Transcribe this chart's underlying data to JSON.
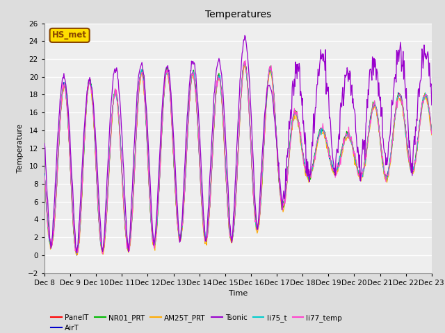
{
  "title": "Temperatures",
  "xlabel": "Time",
  "ylabel": "Temperature",
  "ylim": [
    -2,
    26
  ],
  "yticks": [
    -2,
    0,
    2,
    4,
    6,
    8,
    10,
    12,
    14,
    16,
    18,
    20,
    22,
    24,
    26
  ],
  "xtick_labels": [
    "Dec 8",
    "Dec 9",
    "Dec 10",
    "Dec 11",
    "Dec 12",
    "Dec 13",
    "Dec 14",
    "Dec 15",
    "Dec 16",
    "Dec 17",
    "Dec 18",
    "Dec 19",
    "Dec 20",
    "Dec 21",
    "Dec 22",
    "Dec 23"
  ],
  "series": {
    "PanelT": {
      "color": "#ff0000",
      "lw": 0.8,
      "zorder": 3
    },
    "AirT": {
      "color": "#0000cc",
      "lw": 0.8,
      "zorder": 3
    },
    "NR01_PRT": {
      "color": "#00bb00",
      "lw": 0.8,
      "zorder": 3
    },
    "AM25T_PRT": {
      "color": "#ffaa00",
      "lw": 0.8,
      "zorder": 3
    },
    "Tsonic": {
      "color": "#9900cc",
      "lw": 0.9,
      "zorder": 4
    },
    "li75_t": {
      "color": "#00cccc",
      "lw": 0.8,
      "zorder": 3
    },
    "li77_temp": {
      "color": "#ff44cc",
      "lw": 0.8,
      "zorder": 3
    }
  },
  "annotation_text": "HS_met",
  "annotation_bg": "#ffdd00",
  "annotation_border": "#884400",
  "bg_color": "#dddddd",
  "plot_bg": "#eeeeee",
  "title_fontsize": 10,
  "axis_fontsize": 8,
  "tick_fontsize": 7.5
}
